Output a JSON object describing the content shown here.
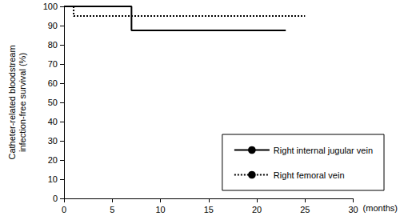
{
  "chart_data": {
    "type": "step",
    "xlabel": "(months)",
    "ylabel": "Catheter-related bloodstream infection-free survival (%)",
    "series": [
      {
        "name": "Right internal jugular vein",
        "color": "#000000",
        "line_style": "solid",
        "x": [
          0,
          7,
          23
        ],
        "values": [
          100,
          87.5,
          87.5
        ]
      },
      {
        "name": "Right femoral vein",
        "color": "#000000",
        "line_style": "dotted",
        "x": [
          0,
          1,
          25
        ],
        "values": [
          100,
          95,
          95
        ]
      }
    ],
    "xlim": [
      0,
      30
    ],
    "xticks": [
      0,
      5,
      10,
      15,
      20,
      25,
      30
    ],
    "ylim": [
      0,
      100
    ],
    "yticks": [
      0,
      10,
      20,
      30,
      40,
      50,
      60,
      70,
      80,
      90,
      100
    ],
    "grid": false,
    "legend": "lower right"
  }
}
